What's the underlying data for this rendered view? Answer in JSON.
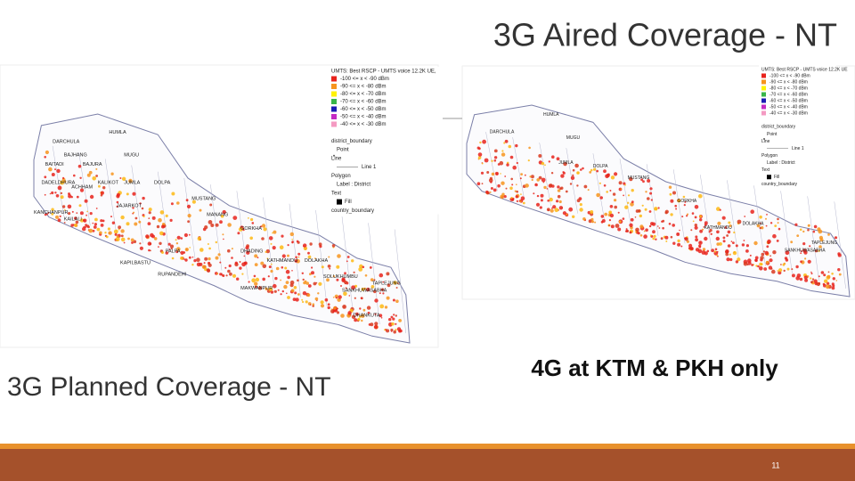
{
  "title": "3G Aired Coverage - NT",
  "left_caption": "3G Planned Coverage - NT",
  "right_caption": "4G at KTM & PKH only",
  "page_number": "11",
  "maps": [
    {
      "legend": {
        "title": "UMTS: Best RSCP - UMTS voice 12.2K UE,",
        "items": [
          {
            "label": "-100 <= x < -90 dBm",
            "color": "#e8231c"
          },
          {
            "label": "-90 <= x < -80 dBm",
            "color": "#f7941d"
          },
          {
            "label": "-80 <= x < -70 dBm",
            "color": "#fff200"
          },
          {
            "label": "-70 <= x < -60 dBm",
            "color": "#39b54a"
          },
          {
            "label": "-60 <= x < -50 dBm",
            "color": "#1b1bb4"
          },
          {
            "label": "-50 <= x < -40 dBm",
            "color": "#c42bc4"
          },
          {
            "label": "-40 <= x < -30 dBm",
            "color": "#f49ac2"
          }
        ],
        "extra": [
          "district_boundary",
          "Point",
          "Line",
          "Line 1",
          "Polygon",
          "Label : District",
          "Text",
          "Fill",
          "country_boundary"
        ]
      },
      "districts": [
        "DARCHULA",
        "HUMLA",
        "BAJHANG",
        "BAJURA",
        "MUGU",
        "BAITADI",
        "DADELDHURA",
        "ACHHAM",
        "KALIKOT",
        "JUMLA",
        "DOLPA",
        "KANCHANPUR",
        "KAILALI",
        "JAJARKOT",
        "MUSTANG",
        "MANANG",
        "GORKHA",
        "DHADING",
        "KATHMANDU",
        "DOLAKHA",
        "SOLUKHUMBU",
        "SANKHUWASABHA",
        "TAPLEJUNG",
        "PALPA",
        "KAPILBASTU",
        "RUPANDEHI",
        "MAKWANPUR",
        "DHANKUTA"
      ]
    },
    {
      "legend": {
        "title": "UMTS: Best RSCP - UMTS voice 12.2K UE",
        "items": [
          {
            "label": "-100 <= x < -90 dBm",
            "color": "#e8231c"
          },
          {
            "label": "-90 <= x < -80 dBm",
            "color": "#f7941d"
          },
          {
            "label": "-80 <= x < -70 dBm",
            "color": "#fff200"
          },
          {
            "label": "-70 <= x < -60 dBm",
            "color": "#39b54a"
          },
          {
            "label": "-60 <= x < -50 dBm",
            "color": "#1b1bb4"
          },
          {
            "label": "-50 <= x < -40 dBm",
            "color": "#c42bc4"
          },
          {
            "label": "-40 <= x < -30 dBm",
            "color": "#f49ac2"
          }
        ],
        "extra": [
          "district_boundary",
          "Point",
          "Line",
          "Line 1",
          "Polygon",
          "Label : District",
          "Text",
          "Fill",
          "country_boundary"
        ]
      },
      "districts": [
        "HUMLA",
        "DARCHULA",
        "MUGU",
        "JUMLA",
        "DOLPA",
        "MUSTANG",
        "GORKHA",
        "KATHMANDU",
        "DOLAKHA",
        "SANKHUWASABHA",
        "TAPLEJUNG"
      ]
    }
  ]
}
